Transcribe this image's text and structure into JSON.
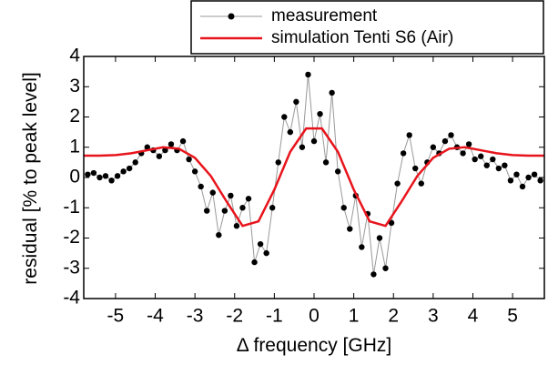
{
  "chart_data": {
    "type": "line",
    "xlabel": "Δ frequency [GHz]",
    "ylabel": "residual [% to peak level]",
    "xlim": [
      -5.8,
      5.8
    ],
    "ylim": [
      -4,
      4
    ],
    "xticks": [
      -5,
      -4,
      -3,
      -2,
      -1,
      0,
      1,
      2,
      3,
      4,
      5
    ],
    "yticks": [
      -4,
      -3,
      -2,
      -1,
      0,
      1,
      2,
      3,
      4
    ],
    "legend": "top-right",
    "series": [
      {
        "name": "measurement",
        "color": "#000000",
        "line_color": "#999999",
        "markers": true,
        "x": [
          -5.7,
          -5.55,
          -5.4,
          -5.25,
          -5.1,
          -4.95,
          -4.8,
          -4.65,
          -4.5,
          -4.35,
          -4.2,
          -4.05,
          -3.9,
          -3.75,
          -3.6,
          -3.45,
          -3.3,
          -3.15,
          -3.0,
          -2.85,
          -2.7,
          -2.55,
          -2.4,
          -2.25,
          -2.1,
          -1.95,
          -1.8,
          -1.65,
          -1.5,
          -1.35,
          -1.2,
          -1.05,
          -0.9,
          -0.75,
          -0.6,
          -0.45,
          -0.3,
          -0.15,
          0,
          0.15,
          0.3,
          0.45,
          0.6,
          0.75,
          0.9,
          1.05,
          1.2,
          1.35,
          1.5,
          1.65,
          1.8,
          1.95,
          2.1,
          2.25,
          2.4,
          2.55,
          2.7,
          2.85,
          3.0,
          3.15,
          3.3,
          3.45,
          3.6,
          3.75,
          3.9,
          4.05,
          4.2,
          4.35,
          4.5,
          4.65,
          4.8,
          4.95,
          5.1,
          5.25,
          5.4,
          5.55,
          5.7
        ],
        "values": [
          0.1,
          0.15,
          0.0,
          0.05,
          -0.1,
          0.05,
          0.2,
          0.3,
          0.5,
          0.8,
          1.0,
          0.9,
          0.7,
          0.9,
          1.1,
          0.9,
          1.2,
          0.6,
          0.2,
          -0.3,
          -1.1,
          -0.5,
          -1.9,
          -1.1,
          -0.6,
          -1.6,
          -1.0,
          -0.7,
          -2.8,
          -2.2,
          -2.5,
          -1.0,
          0.5,
          2.0,
          1.5,
          2.5,
          1.0,
          3.4,
          1.2,
          2.1,
          0.5,
          2.8,
          0.2,
          -1.0,
          -1.7,
          -0.6,
          -2.3,
          -1.2,
          -3.2,
          -2.0,
          -3.0,
          -1.5,
          -0.2,
          0.8,
          1.4,
          0.3,
          -0.2,
          0.5,
          1.0,
          0.8,
          1.2,
          1.4,
          1.0,
          0.8,
          1.1,
          0.6,
          0.7,
          0.4,
          0.6,
          0.3,
          0.4,
          -0.1,
          0.1,
          -0.3,
          0.0,
          0.1,
          -0.1
        ]
      },
      {
        "name": "simulation Tenti S6 (Air)",
        "color": "#e8141c",
        "markers": false,
        "x": [
          -5.8,
          -5.4,
          -5.0,
          -4.6,
          -4.2,
          -3.8,
          -3.4,
          -3.0,
          -2.6,
          -2.2,
          -1.8,
          -1.4,
          -1.0,
          -0.6,
          -0.2,
          0.2,
          0.6,
          1.0,
          1.4,
          1.8,
          2.2,
          2.6,
          3.0,
          3.4,
          3.8,
          4.2,
          4.6,
          5.0,
          5.4,
          5.8
        ],
        "values": [
          0.72,
          0.72,
          0.74,
          0.8,
          0.9,
          1.0,
          0.95,
          0.65,
          0.05,
          -0.8,
          -1.6,
          -1.45,
          -0.4,
          0.85,
          1.62,
          1.62,
          0.85,
          -0.4,
          -1.45,
          -1.6,
          -0.8,
          0.05,
          0.65,
          0.95,
          1.0,
          0.9,
          0.8,
          0.74,
          0.72,
          0.72
        ]
      }
    ]
  }
}
